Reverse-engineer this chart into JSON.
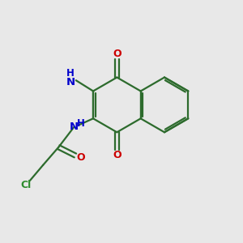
{
  "background_color": "#e8e8e8",
  "bond_color": "#2d6b2d",
  "atom_colors": {
    "O": "#cc0000",
    "N": "#0000cc",
    "Cl": "#2d8b2d",
    "C": "#2d6b2d"
  },
  "figsize": [
    3.0,
    3.0
  ],
  "dpi": 100
}
